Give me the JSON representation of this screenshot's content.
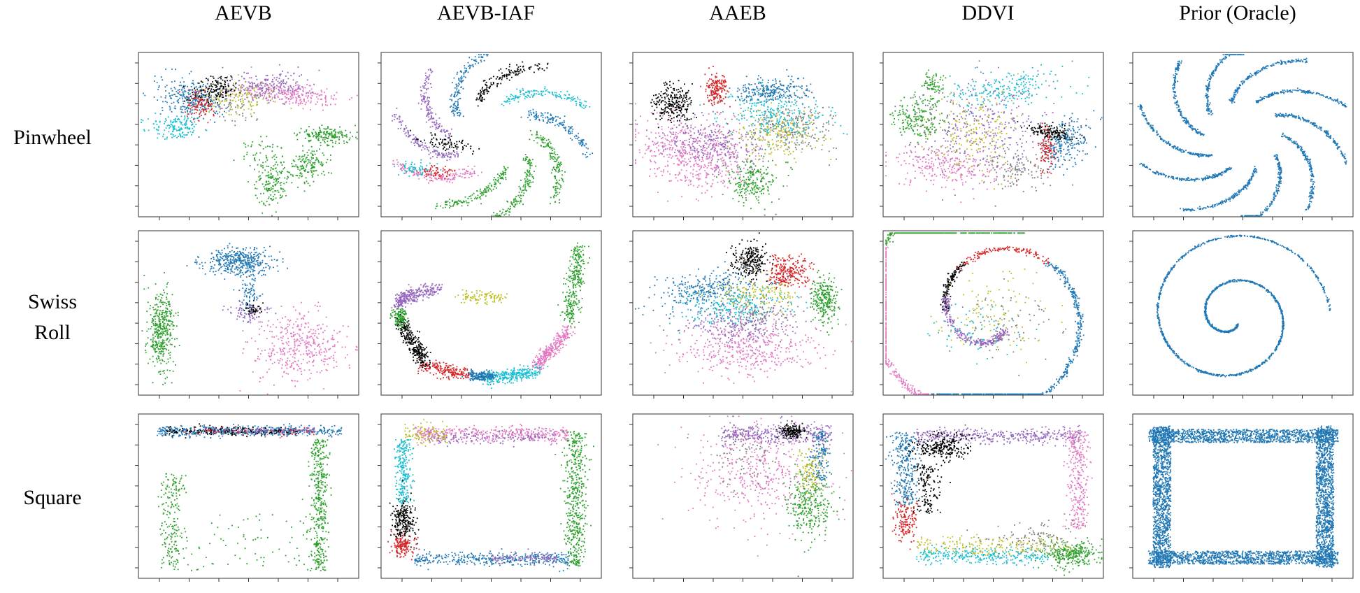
{
  "columns": [
    "AEVB",
    "AEVB-IAF",
    "AAEB",
    "DDVI",
    "Prior (Oracle)"
  ],
  "rows": [
    {
      "label_lines": [
        "Pinwheel"
      ]
    },
    {
      "label_lines": [
        "Swiss",
        "Roll"
      ]
    },
    {
      "label_lines": [
        "Square"
      ]
    }
  ],
  "palette": {
    "blue": "#1f77b4",
    "red": "#d62728",
    "green": "#2ca02c",
    "purple": "#9467bd",
    "pink": "#e377c2",
    "gray": "#7f7f7f",
    "olive": "#bcbd22",
    "cyan": "#17becf",
    "black": "#000000"
  },
  "chart_data": {
    "type": "scatter",
    "layout": "grid 3 rows x 5 columns",
    "panels": [
      {
        "row": "Pinwheel",
        "column": "AEVB",
        "description_series": [
          "blue",
          "red",
          "black",
          "olive",
          "purple",
          "pink",
          "cyan",
          "green"
        ]
      },
      {
        "row": "Pinwheel",
        "column": "AEVB-IAF"
      },
      {
        "row": "Pinwheel",
        "column": "AAEB"
      },
      {
        "row": "Pinwheel",
        "column": "DDVI"
      },
      {
        "row": "Pinwheel",
        "column": "Prior (Oracle)"
      },
      {
        "row": "Swiss Roll",
        "column": "AEVB"
      },
      {
        "row": "Swiss Roll",
        "column": "AEVB-IAF"
      },
      {
        "row": "Swiss Roll",
        "column": "AAEB"
      },
      {
        "row": "Swiss Roll",
        "column": "DDVI"
      },
      {
        "row": "Swiss Roll",
        "column": "Prior (Oracle)"
      },
      {
        "row": "Square",
        "column": "AEVB"
      },
      {
        "row": "Square",
        "column": "AEVB-IAF"
      },
      {
        "row": "Square",
        "column": "AAEB"
      },
      {
        "row": "Square",
        "column": "DDVI"
      },
      {
        "row": "Square",
        "column": "Prior (Oracle)"
      }
    ],
    "grid": false,
    "legend": "none"
  }
}
